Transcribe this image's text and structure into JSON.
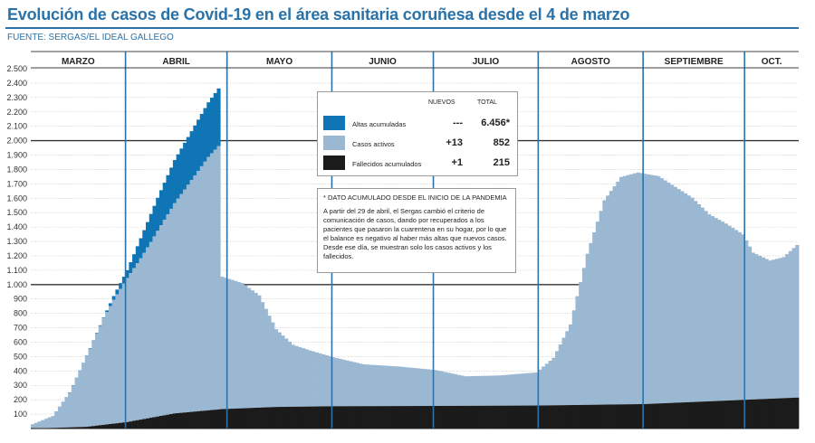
{
  "header": {
    "title": "Evolución de casos de Covid-19 en el área sanitaria coruñesa desde el 4 de marzo",
    "source": "FUENTE: SERGAS/EL IDEAL GALLEGO"
  },
  "colors": {
    "title": "#2a72a8",
    "altas": "#0f75b4",
    "activos": "#9bb8d3",
    "fallecidos": "#1b1b1b",
    "month_line": "#2a72a8",
    "grid": "#b8b8b8",
    "grid_major": "#333333"
  },
  "legend": {
    "col_new": "NUEVOS",
    "col_total": "TOTAL",
    "rows": [
      {
        "label": "Altas acumuladas",
        "new": "---",
        "total": "6.456*",
        "color": "#0f75b4"
      },
      {
        "label": "Casos activos",
        "new": "+13",
        "total": "852",
        "color": "#9bb8d3"
      },
      {
        "label": "Fallecidos acumulados",
        "new": "+1",
        "total": "215",
        "color": "#1b1b1b"
      }
    ]
  },
  "note": {
    "title": "* DATO ACUMULADO DESDE EL INICIO DE LA PANDEMIA",
    "text": "A partir del 29 de abril, el Sergas cambió el criterio de comunicación de casos, dando por recuperados a los pacientes que pasaron la cuarentena en su hogar, por lo que el balance es negativo al haber más altas que nuevos casos. Desde ese día, se muestran solo los casos activos y los fallecidos."
  },
  "chart_data": {
    "type": "area",
    "stacked": true,
    "title": "Evolución de casos de Covid-19 en el área sanitaria coruñesa desde el 4 de marzo",
    "ylim": [
      0,
      2500
    ],
    "yticks": [
      "100",
      "200",
      "300",
      "400",
      "500",
      "600",
      "700",
      "800",
      "900",
      "1.000",
      "1.100",
      "1.200",
      "1.300",
      "1.400",
      "1.500",
      "1.600",
      "1.700",
      "1.800",
      "1.900",
      "2.000",
      "2.100",
      "2.200",
      "2.300",
      "2.400",
      "2.500"
    ],
    "major_gridlines": [
      1000,
      2000
    ],
    "x_start": "2020-03-04",
    "x_end": "2020-10-16",
    "months": [
      {
        "label": "MARZO",
        "start": "2020-03-04",
        "end": "2020-03-31"
      },
      {
        "label": "ABRIL",
        "start": "2020-04-01",
        "end": "2020-04-30"
      },
      {
        "label": "MAYO",
        "start": "2020-05-01",
        "end": "2020-05-31"
      },
      {
        "label": "JUNIO",
        "start": "2020-06-01",
        "end": "2020-06-30"
      },
      {
        "label": "JULIO",
        "start": "2020-07-01",
        "end": "2020-07-31"
      },
      {
        "label": "AGOSTO",
        "start": "2020-08-01",
        "end": "2020-08-31"
      },
      {
        "label": "SEPTIEMBRE",
        "start": "2020-09-01",
        "end": "2020-09-30"
      },
      {
        "label": "OCT.",
        "start": "2020-10-01",
        "end": "2020-10-16"
      }
    ],
    "series": [
      {
        "name": "Fallecidos acumulados",
        "color": "#1b1b1b",
        "points": [
          [
            "2020-03-04",
            0
          ],
          [
            "2020-03-20",
            12
          ],
          [
            "2020-04-01",
            45
          ],
          [
            "2020-04-15",
            105
          ],
          [
            "2020-04-29",
            135
          ],
          [
            "2020-05-15",
            150
          ],
          [
            "2020-06-01",
            155
          ],
          [
            "2020-07-01",
            157
          ],
          [
            "2020-08-01",
            160
          ],
          [
            "2020-09-01",
            170
          ],
          [
            "2020-10-01",
            200
          ],
          [
            "2020-10-16",
            215
          ]
        ]
      },
      {
        "name": "Casos activos",
        "color": "#9bb8d3",
        "points": [
          [
            "2020-03-04",
            30
          ],
          [
            "2020-03-10",
            80
          ],
          [
            "2020-03-15",
            240
          ],
          [
            "2020-03-20",
            490
          ],
          [
            "2020-03-25",
            740
          ],
          [
            "2020-03-28",
            860
          ],
          [
            "2020-04-01",
            1000
          ],
          [
            "2020-04-05",
            1120
          ],
          [
            "2020-04-10",
            1290
          ],
          [
            "2020-04-15",
            1460
          ],
          [
            "2020-04-20",
            1610
          ],
          [
            "2020-04-25",
            1760
          ],
          [
            "2020-04-28",
            1830
          ],
          [
            "2020-04-29",
            920
          ],
          [
            "2020-05-05",
            870
          ],
          [
            "2020-05-10",
            780
          ],
          [
            "2020-05-15",
            540
          ],
          [
            "2020-05-20",
            430
          ],
          [
            "2020-05-25",
            390
          ],
          [
            "2020-06-01",
            340
          ],
          [
            "2020-06-10",
            290
          ],
          [
            "2020-06-20",
            275
          ],
          [
            "2020-07-01",
            250
          ],
          [
            "2020-07-10",
            205
          ],
          [
            "2020-07-20",
            210
          ],
          [
            "2020-07-31",
            230
          ],
          [
            "2020-08-05",
            330
          ],
          [
            "2020-08-10",
            560
          ],
          [
            "2020-08-15",
            1050
          ],
          [
            "2020-08-20",
            1420
          ],
          [
            "2020-08-25",
            1580
          ],
          [
            "2020-08-30",
            1610
          ],
          [
            "2020-09-05",
            1580
          ],
          [
            "2020-09-10",
            1500
          ],
          [
            "2020-09-15",
            1420
          ],
          [
            "2020-09-20",
            1300
          ],
          [
            "2020-09-25",
            1230
          ],
          [
            "2020-09-30",
            1150
          ],
          [
            "2020-10-03",
            1020
          ],
          [
            "2020-10-08",
            960
          ],
          [
            "2020-10-12",
            980
          ],
          [
            "2020-10-16",
            1060
          ]
        ]
      },
      {
        "name": "Altas acumuladas",
        "color": "#0f75b4",
        "points": [
          [
            "2020-03-04",
            0
          ],
          [
            "2020-03-25",
            5
          ],
          [
            "2020-04-01",
            55
          ],
          [
            "2020-04-05",
            140
          ],
          [
            "2020-04-10",
            230
          ],
          [
            "2020-04-15",
            300
          ],
          [
            "2020-04-20",
            340
          ],
          [
            "2020-04-25",
            380
          ],
          [
            "2020-04-28",
            400
          ]
        ]
      }
    ],
    "legend": [
      {
        "label": "Altas acumuladas",
        "new": "---",
        "total": "6.456*"
      },
      {
        "label": "Casos activos",
        "new": "+13",
        "total": "852"
      },
      {
        "label": "Fallecidos acumulados",
        "new": "+1",
        "total": "215"
      }
    ],
    "annotation": "* DATO ACUMULADO DESDE EL INICIO DE LA PANDEMIA"
  }
}
